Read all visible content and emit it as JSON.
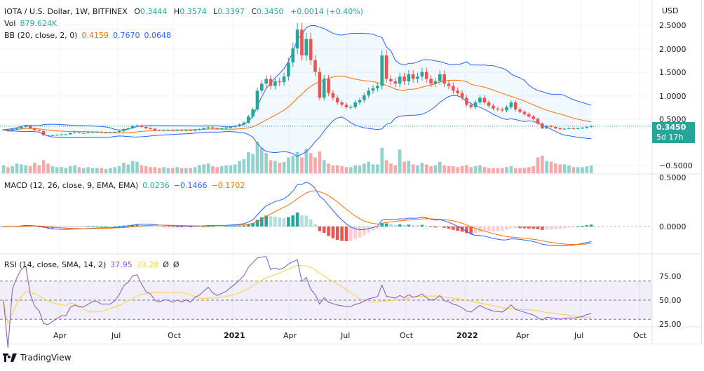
{
  "header": {
    "symbol": "IOTA / U.S. Dollar, 1W, BITFINEX",
    "o_label": "O",
    "o": "0.3444",
    "h_label": "H",
    "h": "0.3574",
    "l_label": "L",
    "l": "0.3397",
    "c_label": "C",
    "c": "0.3450",
    "change": "+0.0014 (+0.40%)",
    "vol_label": "Vol",
    "vol": "879.624K",
    "bb_label": "BB (20, close, 2, 0)",
    "bb_basis": "0.4159",
    "bb_upper": "0.7670",
    "bb_lower": "0.0648"
  },
  "macd": {
    "label": "MACD (12, 26, close, 9, EMA, EMA)",
    "hist": "0.0236",
    "macd": "−0.1466",
    "signal": "−0.1702"
  },
  "rsi": {
    "label": "RSI (14, close, SMA, 14, 2)",
    "rsi": "37.95",
    "sma": "33.28",
    "extra1": "Ø",
    "extra2": "Ø"
  },
  "price_axis": {
    "currency": "USD",
    "ticks": [
      "2.5000",
      "2.0000",
      "1.5000",
      "1.0000",
      "0.5000",
      "−0.5000"
    ],
    "last_price": "0.3450",
    "countdown": "5d 17h"
  },
  "macd_axis": {
    "ticks": [
      "0.5000",
      "0.0000"
    ]
  },
  "rsi_axis": {
    "ticks": [
      "75.00",
      "50.00",
      "25.00"
    ]
  },
  "time_axis": {
    "ticks": [
      "Apr",
      "Jul",
      "Oct",
      "2021",
      "Apr",
      "Jul",
      "Oct",
      "2022",
      "Apr",
      "Jul",
      "Oct"
    ]
  },
  "footer": {
    "brand": "TradingView"
  },
  "colors": {
    "up": "#26a69a",
    "down": "#ef5350",
    "bb_basis": "#ff6d00",
    "bb_band": "#2962ff",
    "rsi": "#7e57c2",
    "rsi_sma": "#f5d33a"
  },
  "chart_data": {
    "type": "candlestick",
    "interval": "1W",
    "x_range": [
      "2020-01",
      "2022-08"
    ],
    "y_range": [
      -0.5,
      2.6
    ],
    "closes": [
      0.27,
      0.25,
      0.28,
      0.3,
      0.33,
      0.35,
      0.3,
      0.26,
      0.24,
      0.15,
      0.14,
      0.15,
      0.16,
      0.17,
      0.17,
      0.2,
      0.21,
      0.2,
      0.2,
      0.21,
      0.22,
      0.22,
      0.21,
      0.21,
      0.21,
      0.22,
      0.24,
      0.28,
      0.3,
      0.35,
      0.36,
      0.33,
      0.3,
      0.29,
      0.26,
      0.25,
      0.26,
      0.26,
      0.25,
      0.26,
      0.25,
      0.26,
      0.25,
      0.27,
      0.28,
      0.3,
      0.32,
      0.3,
      0.29,
      0.3,
      0.31,
      0.33,
      0.35,
      0.38,
      0.42,
      0.55,
      0.7,
      1.1,
      1.25,
      1.35,
      1.2,
      1.3,
      1.28,
      1.4,
      1.7,
      2.0,
      2.4,
      1.85,
      2.2,
      1.75,
      1.5,
      0.95,
      1.35,
      1.05,
      0.95,
      0.85,
      0.8,
      0.75,
      0.75,
      0.85,
      0.9,
      1.0,
      1.1,
      1.15,
      1.2,
      1.85,
      1.35,
      1.3,
      1.25,
      1.4,
      1.3,
      1.45,
      1.35,
      1.4,
      1.5,
      1.35,
      1.25,
      1.3,
      1.45,
      1.25,
      1.2,
      1.1,
      1.05,
      0.95,
      0.8,
      0.75,
      0.85,
      0.95,
      0.85,
      0.78,
      0.72,
      0.7,
      0.68,
      0.75,
      0.85,
      0.7,
      0.65,
      0.6,
      0.55,
      0.5,
      0.4,
      0.3,
      0.35,
      0.33,
      0.3,
      0.28,
      0.29,
      0.3,
      0.29,
      0.3,
      0.31,
      0.33,
      0.345
    ],
    "volumes_k": [
      900,
      700,
      800,
      1100,
      1000,
      900,
      800,
      1200,
      900,
      1500,
      1100,
      800,
      700,
      700,
      600,
      800,
      900,
      700,
      600,
      700,
      600,
      600,
      600,
      500,
      600,
      700,
      800,
      1200,
      1000,
      1400,
      1300,
      900,
      800,
      700,
      700,
      600,
      700,
      600,
      600,
      700,
      600,
      600,
      600,
      700,
      900,
      1000,
      1100,
      800,
      700,
      800,
      900,
      900,
      1000,
      1400,
      1600,
      2400,
      2200,
      3600,
      2900,
      2300,
      1500,
      1400,
      1200,
      1300,
      1800,
      2000,
      2400,
      1800,
      2800,
      2300,
      1800,
      2500,
      1500,
      1100,
      900,
      900,
      800,
      700,
      700,
      900,
      900,
      1100,
      1300,
      1000,
      1000,
      2900,
      1500,
      1100,
      900,
      2700,
      1300,
      1400,
      1000,
      900,
      1200,
      1000,
      800,
      900,
      1300,
      900,
      800,
      800,
      700,
      800,
      900,
      700,
      800,
      900,
      700,
      600,
      600,
      600,
      600,
      700,
      800,
      600,
      600,
      600,
      700,
      800,
      1800,
      2000,
      1400,
      1300,
      1100,
      1000,
      1000,
      900,
      700,
      700,
      700,
      800,
      880
    ]
  }
}
